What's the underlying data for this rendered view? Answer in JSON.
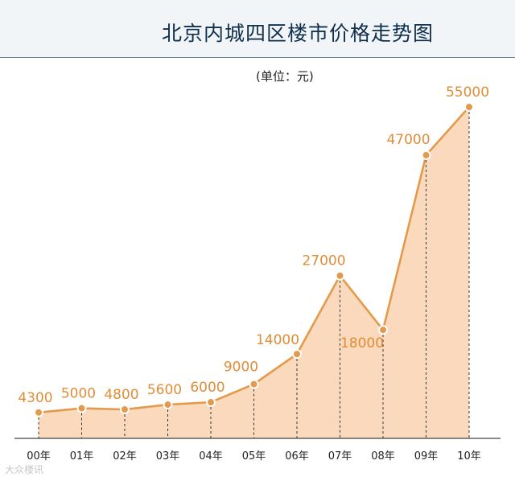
{
  "title": "北京内城四区楼市价格走势图",
  "unit_label": "(单位：元)",
  "watermark": "大众楼讯",
  "colors": {
    "line": "#e39a4c",
    "fill": "#fbd9bd",
    "marker": "#e39a4c",
    "label": "#e08d37",
    "header_bg": "#f2f5f8",
    "title": "#0f2f4c"
  },
  "chart_data": {
    "type": "area",
    "title": "北京内城四区楼市价格走势图",
    "ylabel": "(单位：元)",
    "categories": [
      "00年",
      "01年",
      "02年",
      "03年",
      "04年",
      "05年",
      "06年",
      "07年",
      "08年",
      "09年",
      "10年"
    ],
    "series": [
      {
        "values": [
          4300,
          5000,
          4800,
          5600,
          6000,
          9000,
          14000,
          27000,
          18000,
          47000,
          55000
        ]
      }
    ],
    "data_labels": [
      "4300",
      "5000",
      "4800",
      "5600",
      "6000",
      "9000",
      "14000",
      "27000",
      "18000",
      "47000",
      "55000"
    ],
    "ylim": [
      0,
      55000
    ],
    "grid": false,
    "legend": "none"
  }
}
